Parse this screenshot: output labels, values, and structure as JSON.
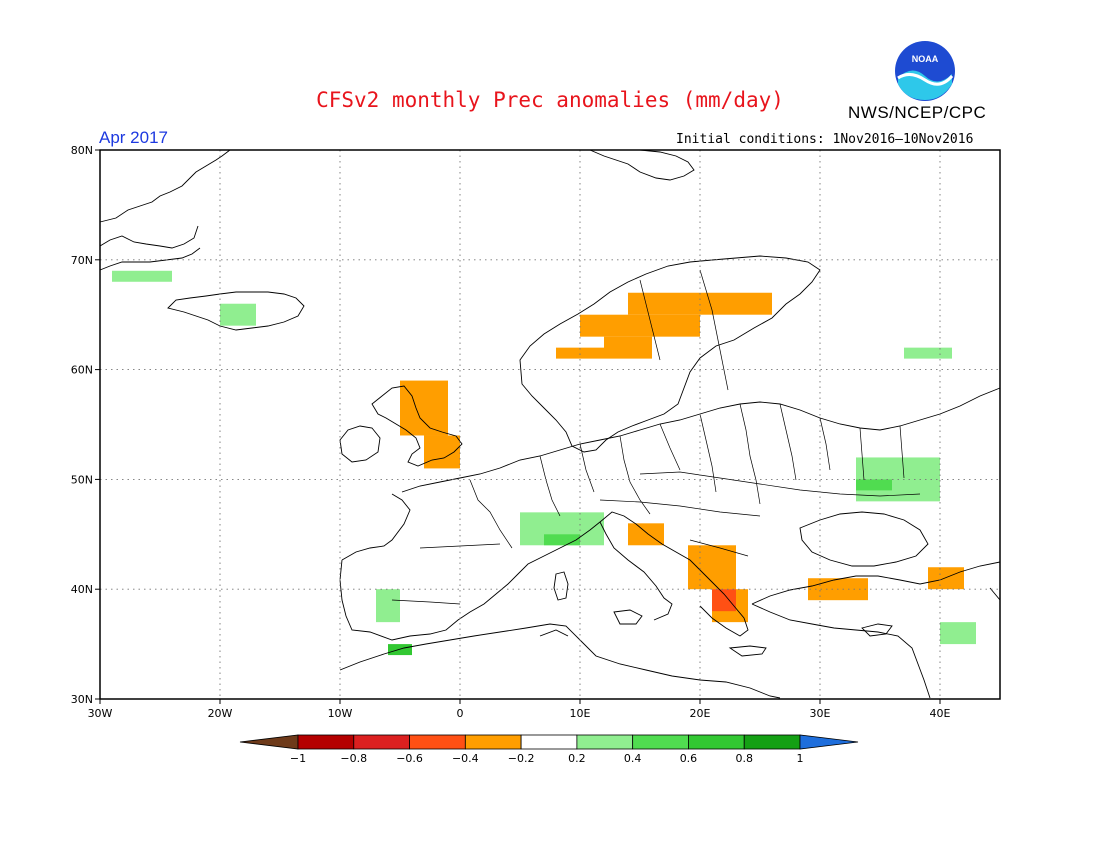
{
  "title": "CFSv2 monthly Prec anomalies (mm/day)",
  "agency": "NWS/NCEP/CPC",
  "month_label": "Apr 2017",
  "initial_conditions": "Initial conditions: 1Nov2016—10Nov2016",
  "logo_text": "NOAA",
  "lat_labels": [
    "80N",
    "70N",
    "60N",
    "50N",
    "40N",
    "30N"
  ],
  "lon_labels": [
    "30W",
    "20W",
    "10W",
    "0",
    "10E",
    "20E",
    "30E",
    "40E"
  ],
  "colorbar": {
    "tick_labels": [
      "−1",
      "−0.8",
      "−0.6",
      "−0.4",
      "−0.2",
      "0.2",
      "0.4",
      "0.6",
      "0.8",
      "1"
    ],
    "colors": [
      "#6e3a1a",
      "#b40000",
      "#dc2020",
      "#ff5014",
      "#ff9e00",
      "#ffffff",
      "#90ee90",
      "#50dc50",
      "#32c832",
      "#14a014",
      "#1e6edc"
    ]
  },
  "map_data": {
    "lon_range": [
      -30,
      45
    ],
    "lat_range": [
      30,
      80
    ],
    "grid": true,
    "anomaly_cells": [
      {
        "class": "-0.4",
        "lon": 10,
        "lat": 63,
        "w": 10,
        "h": 2
      },
      {
        "class": "-0.4",
        "lon": 14,
        "lat": 65,
        "w": 12,
        "h": 2
      },
      {
        "class": "-0.4",
        "lon": 12,
        "lat": 61,
        "w": 4,
        "h": 2
      },
      {
        "class": "-0.4",
        "lon": 8,
        "lat": 61,
        "w": 4,
        "h": 1
      },
      {
        "class": "-0.4",
        "lon": -5,
        "lat": 54,
        "w": 4,
        "h": 5
      },
      {
        "class": "-0.4",
        "lon": -3,
        "lat": 51,
        "w": 3,
        "h": 3
      },
      {
        "class": "-0.4",
        "lon": 14,
        "lat": 44,
        "w": 3,
        "h": 2
      },
      {
        "class": "-0.4",
        "lon": 19,
        "lat": 40,
        "w": 4,
        "h": 4
      },
      {
        "class": "-0.4",
        "lon": 21,
        "lat": 37,
        "w": 3,
        "h": 3
      },
      {
        "class": "-0.4",
        "lon": 29,
        "lat": 39,
        "w": 5,
        "h": 2
      },
      {
        "class": "-0.4",
        "lon": 39,
        "lat": 40,
        "w": 3,
        "h": 2
      },
      {
        "class": "-0.6",
        "lon": 21,
        "lat": 38,
        "w": 2,
        "h": 2
      },
      {
        "class": "0.2",
        "lon": 33,
        "lat": 48,
        "w": 7,
        "h": 4
      },
      {
        "class": "0.2",
        "lon": 5,
        "lat": 44,
        "w": 7,
        "h": 3
      },
      {
        "class": "0.2",
        "lon": -29,
        "lat": 68,
        "w": 5,
        "h": 1
      },
      {
        "class": "0.2",
        "lon": -20,
        "lat": 64,
        "w": 3,
        "h": 2
      },
      {
        "class": "0.2",
        "lon": 37,
        "lat": 61,
        "w": 4,
        "h": 1
      },
      {
        "class": "0.2",
        "lon": -7,
        "lat": 37,
        "w": 2,
        "h": 3
      },
      {
        "class": "0.2",
        "lon": 40,
        "lat": 35,
        "w": 3,
        "h": 2
      },
      {
        "class": "0.4",
        "lon": 33,
        "lat": 49,
        "w": 3,
        "h": 1
      },
      {
        "class": "0.4",
        "lon": 7,
        "lat": 44,
        "w": 3,
        "h": 1
      },
      {
        "class": "0.6",
        "lon": -6,
        "lat": 34,
        "w": 2,
        "h": 1
      }
    ]
  }
}
